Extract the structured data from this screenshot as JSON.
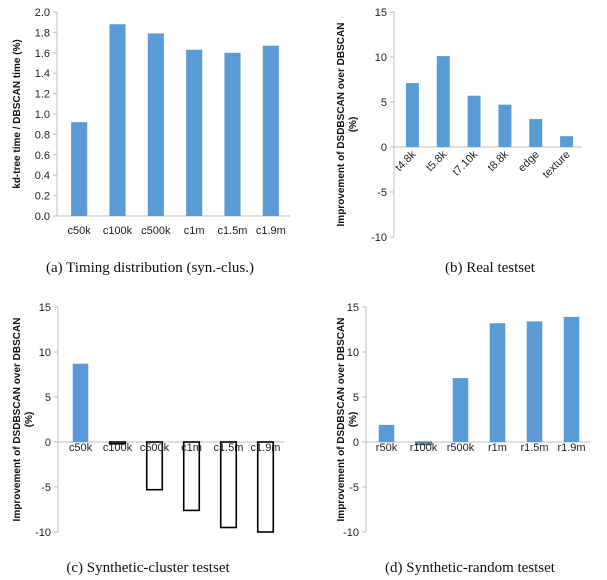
{
  "chart_data": [
    {
      "type": "bar",
      "categories": [
        "c50k",
        "c100k",
        "c500k",
        "c1m",
        "c1.5m",
        "c1.9m"
      ],
      "values": [
        0.92,
        1.88,
        1.79,
        1.63,
        1.6,
        1.67
      ],
      "ylabel": "kd-tree time / DBSCAN time (%)",
      "ylim": [
        0,
        2.0
      ],
      "yticks": [
        "2.0",
        "1.8",
        "1.6",
        "1.4",
        "1.2",
        "1.0",
        "0.8",
        "0.6",
        "0.4",
        "0.2",
        "0.0"
      ],
      "caption": "(a) Timing distribution (syn.-clus.)",
      "rotated_labels": false,
      "grid": false,
      "bar_color": "#5b9bd5"
    },
    {
      "type": "bar",
      "categories": [
        "t4.8k",
        "t5.8k",
        "t7.10k",
        "t8.8k",
        "edge",
        "texture"
      ],
      "values": [
        7.1,
        10.1,
        5.7,
        4.7,
        3.1,
        1.2
      ],
      "ylabel": "Improvement of DSDBSCAN over DBSCAN (%)",
      "ylim": [
        -10,
        15
      ],
      "yticks": [
        "15",
        "10",
        "5",
        "0",
        "-5",
        "-10"
      ],
      "caption": "(b) Real testset",
      "rotated_labels": true,
      "grid": false,
      "bar_color": "#5b9bd5"
    },
    {
      "type": "bar",
      "categories": [
        "c50k",
        "c100k",
        "c500k",
        "c1m",
        "c1.5m",
        "c1.9m"
      ],
      "values": [
        8.7,
        -0.2,
        -5.3,
        -7.6,
        -9.5,
        -10.0
      ],
      "ylabel": "Improvement of DSDBSCAN over DBSCAN (%)",
      "ylim": [
        -10,
        15
      ],
      "yticks": [
        "15",
        "10",
        "5",
        "0",
        "-5",
        "-10"
      ],
      "caption": "(c) Synthetic-cluster testset",
      "rotated_labels": false,
      "grid": false,
      "bar_color": "#5b9bd5",
      "negative_style": "outline"
    },
    {
      "type": "bar",
      "categories": [
        "r50k",
        "r100k",
        "r500k",
        "r1m",
        "r1.5m",
        "r1.9m"
      ],
      "values": [
        1.9,
        -0.3,
        7.1,
        13.2,
        13.4,
        13.9
      ],
      "ylabel": "Improvement of DSDBSCAN over DBSCAN (%)",
      "ylim": [
        -10,
        15
      ],
      "yticks": [
        "15",
        "10",
        "5",
        "0",
        "-5",
        "-10"
      ],
      "caption": "(d) Synthetic-random testset",
      "rotated_labels": false,
      "grid": false,
      "bar_color": "#5b9bd5"
    }
  ]
}
